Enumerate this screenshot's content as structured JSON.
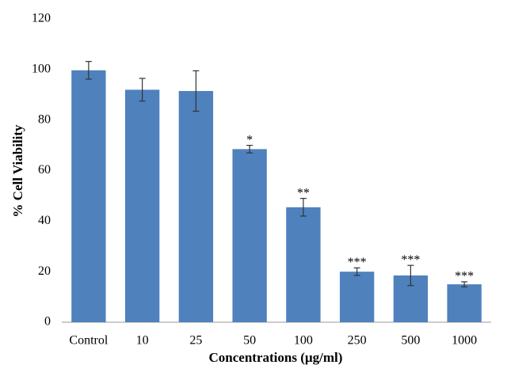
{
  "chart_data": {
    "type": "bar",
    "categories": [
      "Control",
      "10",
      "25",
      "50",
      "100",
      "250",
      "500",
      "1000"
    ],
    "values": [
      99.7,
      92,
      91.5,
      68.5,
      45.5,
      20,
      18.5,
      15
    ],
    "errors": [
      3.5,
      4.5,
      8,
      1.5,
      3.5,
      1.5,
      4,
      1
    ],
    "annotations": [
      null,
      null,
      null,
      "*",
      "**",
      "***",
      "***",
      "***"
    ],
    "color": "#4f81bd",
    "x_label": "Concentrations (µg/ml)",
    "y_label": "% Cell Viability",
    "ylim": [
      0,
      120
    ],
    "yticks": [
      0,
      20,
      40,
      60,
      80,
      100,
      120
    ],
    "grid": false
  }
}
